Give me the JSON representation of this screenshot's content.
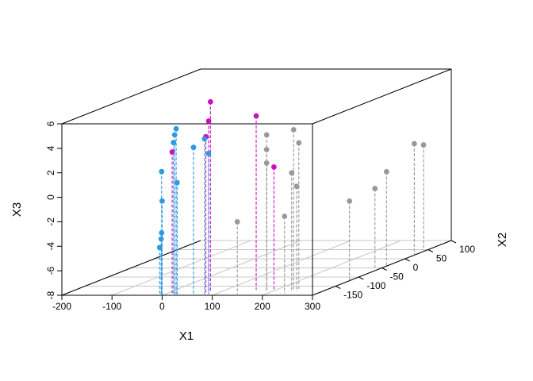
{
  "chart_data": {
    "type": "scatter3d",
    "xlabel": "X1",
    "ylabel": "X2",
    "zlabel": "X3",
    "xlim": [
      -200,
      300
    ],
    "ylim": [
      -200,
      100
    ],
    "zlim": [
      -8,
      6
    ],
    "x_ticks": [
      "-200",
      "-100",
      "0",
      "100",
      "200",
      "300"
    ],
    "y_ticks": [
      "-150",
      "-100",
      "-50",
      "0",
      "50",
      "100"
    ],
    "z_ticks": [
      "-8",
      "-6",
      "-4",
      "-2",
      "0",
      "2",
      "4",
      "6"
    ],
    "grid": true,
    "drop_lines": true,
    "colors": {
      "group1": "#2e9ae0",
      "group2": "#cc10c2",
      "group3": "#999999"
    },
    "points": [
      {
        "x": -5,
        "y": -200,
        "z": -4.1,
        "g": "group1"
      },
      {
        "x": -2,
        "y": -200,
        "z": -3.4,
        "g": "group1"
      },
      {
        "x": -1,
        "y": -200,
        "z": -2.9,
        "g": "group1"
      },
      {
        "x": -1,
        "y": -200,
        "z": 2.1,
        "g": "group1"
      },
      {
        "x": 0,
        "y": -200,
        "z": -0.3,
        "g": "group1"
      },
      {
        "x": 18,
        "y": -195,
        "z": 4.4,
        "g": "group1"
      },
      {
        "x": 25,
        "y": -200,
        "z": 5.1,
        "g": "group1"
      },
      {
        "x": 28,
        "y": -200,
        "z": 5.6,
        "g": "group1"
      },
      {
        "x": 30,
        "y": -200,
        "z": 1.2,
        "g": "group1"
      },
      {
        "x": 58,
        "y": -195,
        "z": 4.0,
        "g": "group1"
      },
      {
        "x": 80,
        "y": -195,
        "z": 4.7,
        "g": "group1"
      },
      {
        "x": 88,
        "y": -195,
        "z": 3.5,
        "g": "group1"
      },
      {
        "x": 20,
        "y": -200,
        "z": 3.7,
        "g": "group2"
      },
      {
        "x": 78,
        "y": -180,
        "z": 7.5,
        "g": "group2"
      },
      {
        "x": 79,
        "y": -185,
        "z": 6.0,
        "g": "group2"
      },
      {
        "x": 78,
        "y": -190,
        "z": 4.8,
        "g": "group2"
      },
      {
        "x": 160,
        "y": -170,
        "z": 6.2,
        "g": "group2"
      },
      {
        "x": 200,
        "y": -175,
        "z": 2.1,
        "g": "group2"
      },
      {
        "x": 150,
        "y": -200,
        "z": -2.0,
        "g": "group3"
      },
      {
        "x": 190,
        "y": -180,
        "z": 4.8,
        "g": "group3"
      },
      {
        "x": 190,
        "y": -180,
        "z": 3.6,
        "g": "group3"
      },
      {
        "x": 190,
        "y": -180,
        "z": 2.5,
        "g": "group3"
      },
      {
        "x": 230,
        "y": -165,
        "z": 5.0,
        "g": "group3"
      },
      {
        "x": 245,
        "y": -170,
        "z": 4.0,
        "g": "group3"
      },
      {
        "x": 240,
        "y": -180,
        "z": 1.7,
        "g": "group3"
      },
      {
        "x": 250,
        "y": -180,
        "z": 0.6,
        "g": "group3"
      },
      {
        "x": 235,
        "y": -190,
        "z": -1.7,
        "g": "group3"
      },
      {
        "x": 300,
        "y": -120,
        "z": -1.5,
        "g": "group3"
      },
      {
        "x": 300,
        "y": -65,
        "z": -1.3,
        "g": "group3"
      },
      {
        "x": 300,
        "y": -40,
        "z": -0.3,
        "g": "group3"
      },
      {
        "x": 300,
        "y": 20,
        "z": 1.1,
        "g": "group3"
      },
      {
        "x": 300,
        "y": 40,
        "z": 0.7,
        "g": "group3"
      }
    ]
  }
}
